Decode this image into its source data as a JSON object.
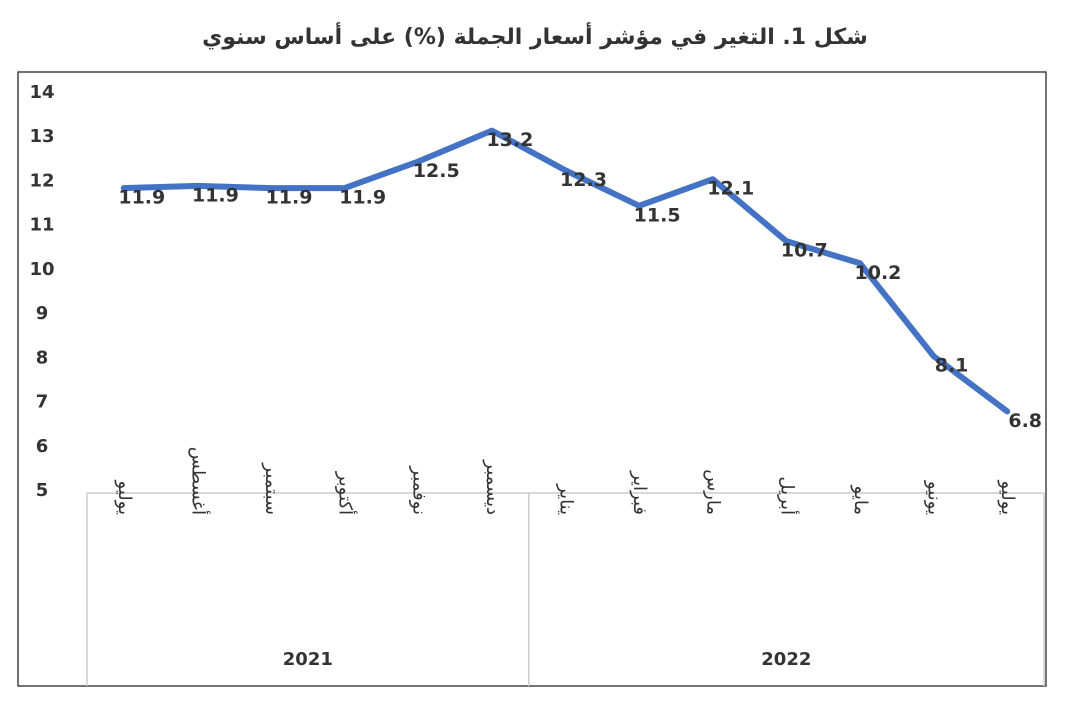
{
  "chart_data": {
    "type": "line",
    "title": "شكل 1. التغير في مؤشر أسعار الجملة (%) على أساس سنوي",
    "categories": [
      "يوليو",
      "أغسطس",
      "سبتمبر",
      "أكتوبر",
      "نوفمبر",
      "ديسمبر",
      "يناير",
      "فبراير",
      "مارس",
      "أبريل",
      "مايو",
      "يونيو",
      "يوليو"
    ],
    "groups": [
      {
        "label": "2021",
        "count": 6
      },
      {
        "label": "2022",
        "count": 7
      }
    ],
    "series": [
      {
        "name": "التغير في مؤشر أسعار الجملة",
        "color": "#4472c4",
        "values": [
          11.85,
          11.9,
          11.85,
          11.85,
          12.45,
          13.15,
          12.25,
          11.45,
          12.05,
          10.65,
          10.15,
          8.05,
          6.8
        ],
        "value_labels": [
          "11.9",
          "11.9",
          "11.9",
          "11.9",
          "12.5",
          "13.2",
          "12.3",
          "11.5",
          "12.1",
          "10.7",
          "10.2",
          "8.1",
          "6.8"
        ]
      }
    ],
    "ylim": [
      5,
      14
    ],
    "yticks": [
      5,
      6,
      7,
      8,
      9,
      10,
      11,
      12,
      13,
      14
    ],
    "grid": false
  }
}
